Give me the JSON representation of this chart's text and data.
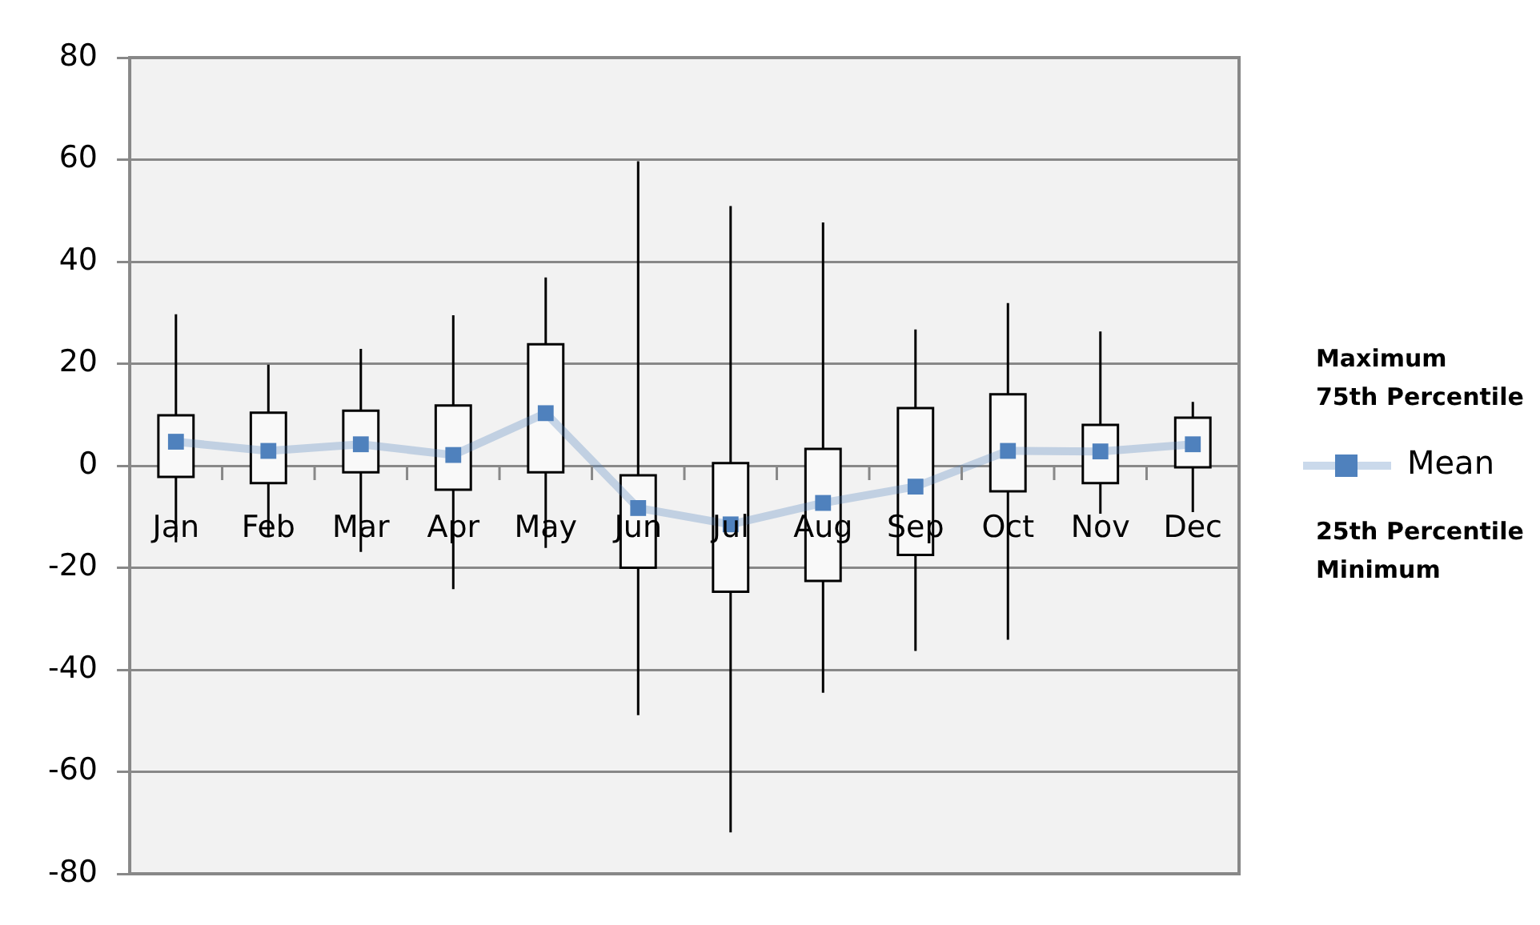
{
  "chart_data": {
    "type": "box",
    "categories": [
      "Jan",
      "Feb",
      "Mar",
      "Apr",
      "May",
      "Jun",
      "Jul",
      "Aug",
      "Sep",
      "Oct",
      "Nov",
      "Dec"
    ],
    "boxes": [
      {
        "low": -15,
        "q1": -2.2,
        "q3": 9.9,
        "high": 29.7
      },
      {
        "low": -14,
        "q1": -3.4,
        "q3": 10.4,
        "high": 19.8
      },
      {
        "low": -16.9,
        "q1": -1.3,
        "q3": 10.8,
        "high": 22.9
      },
      {
        "low": -24.2,
        "q1": -4.7,
        "q3": 11.8,
        "high": 29.5
      },
      {
        "low": -16.1,
        "q1": -1.3,
        "q3": 23.8,
        "high": 36.9
      },
      {
        "low": -48.9,
        "q1": -20,
        "q3": -1.9,
        "high": 59.7
      },
      {
        "low": -71.9,
        "q1": -24.7,
        "q3": 0.5,
        "high": 50.9
      },
      {
        "low": -44.5,
        "q1": -22.6,
        "q3": 3.3,
        "high": 47.7
      },
      {
        "low": -36.3,
        "q1": -17.5,
        "q3": 11.3,
        "high": 26.7
      },
      {
        "low": -34.1,
        "q1": -5,
        "q3": 14,
        "high": 31.9
      },
      {
        "low": -9.4,
        "q1": -3.4,
        "q3": 8,
        "high": 26.3
      },
      {
        "low": -9.1,
        "q1": -0.3,
        "q3": 9.4,
        "high": 12.5
      }
    ],
    "series": [
      {
        "type": "line",
        "name": "Mean",
        "color": "#4f81bd",
        "values": [
          4.7,
          2.9,
          4.2,
          2.1,
          10.3,
          -8.3,
          -11.5,
          -7.3,
          -4.1,
          2.9,
          2.8,
          4.2
        ]
      }
    ],
    "marker": "square",
    "ylim": [
      -80,
      80
    ],
    "yticks": [
      -80,
      -60,
      -40,
      -20,
      0,
      20,
      40,
      60,
      80
    ],
    "grid": "y",
    "legend": "right",
    "annotations": [
      "Maximum",
      "75th Percentile",
      "25th Percentile",
      "Minimum"
    ]
  }
}
